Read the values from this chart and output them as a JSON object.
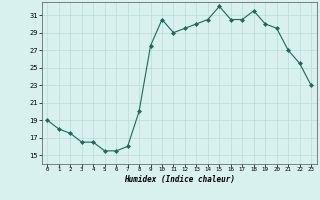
{
  "x": [
    0,
    1,
    2,
    3,
    4,
    5,
    6,
    7,
    8,
    9,
    10,
    11,
    12,
    13,
    14,
    15,
    16,
    17,
    18,
    19,
    20,
    21,
    22,
    23
  ],
  "y": [
    19,
    18,
    17.5,
    16.5,
    16.5,
    15.5,
    15.5,
    16,
    20,
    27.5,
    30.5,
    29,
    29.5,
    30,
    30.5,
    32,
    30.5,
    30.5,
    31.5,
    30,
    29.5,
    27,
    25.5,
    23
  ],
  "xlabel": "Humidex (Indice chaleur)",
  "ylabel": "",
  "xlim": [
    -0.5,
    23.5
  ],
  "ylim": [
    14.0,
    32.5
  ],
  "yticks": [
    15,
    17,
    19,
    21,
    23,
    25,
    27,
    29,
    31
  ],
  "xticks": [
    0,
    1,
    2,
    3,
    4,
    5,
    6,
    7,
    8,
    9,
    10,
    11,
    12,
    13,
    14,
    15,
    16,
    17,
    18,
    19,
    20,
    21,
    22,
    23
  ],
  "line_color": "#1a6b5a",
  "marker_color": "#1a6b5a",
  "bg_color": "#d8f0ee",
  "grid_major_color": "#b8dcd8",
  "grid_minor_color": "#cce8e4",
  "axis_color": "#555555"
}
